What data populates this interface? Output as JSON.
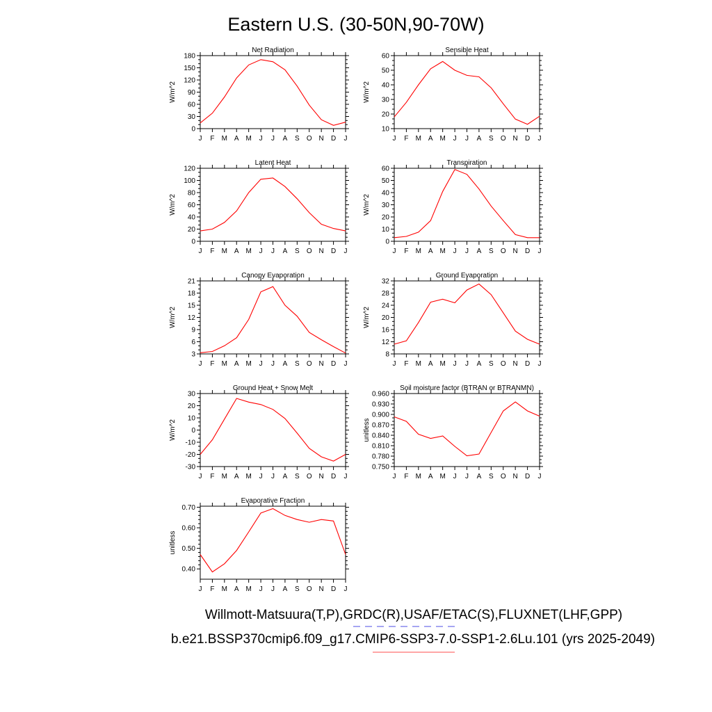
{
  "figure": {
    "title": "Eastern U.S. (30-50N,90-70W)",
    "footer_line1": "Willmott-Matsuura(T,P),GRDC(R),USAF/ETAC(S),FLUXNET(LHF,GPP)",
    "footer_line2": "b.e21.BSSP370cmip6.f09_g17.CMIP6-SSP3-7.0-SSP1-2.6Lu.101 (yrs 2025-2049)",
    "colors": {
      "line": "#ff0000",
      "axis": "#000000",
      "dash": "#8888ee",
      "underline": "#ff8888"
    }
  },
  "chart_data": [
    {
      "type": "line",
      "title": "Net Radiation",
      "ylabel": "W/m^2",
      "categories": [
        "J",
        "F",
        "M",
        "A",
        "M",
        "J",
        "J",
        "A",
        "S",
        "O",
        "N",
        "D",
        "J"
      ],
      "values": [
        14,
        38,
        78,
        125,
        157,
        170,
        165,
        145,
        105,
        58,
        22,
        8,
        16
      ],
      "ylim": [
        0,
        180
      ],
      "yticks": [
        "0",
        "30",
        "60",
        "90",
        "120",
        "150",
        "180"
      ]
    },
    {
      "type": "line",
      "title": "Sensible Heat",
      "ylabel": "W/m^2",
      "categories": [
        "J",
        "F",
        "M",
        "A",
        "M",
        "J",
        "J",
        "A",
        "S",
        "O",
        "N",
        "D",
        "J"
      ],
      "values": [
        18,
        28,
        40,
        51,
        56,
        50,
        46.5,
        45.5,
        38,
        27,
        16.5,
        13,
        18.5
      ],
      "ylim": [
        10,
        60
      ],
      "yticks": [
        "10",
        "20",
        "30",
        "40",
        "50",
        "60"
      ]
    },
    {
      "type": "line",
      "title": "Latent Heat",
      "ylabel": "W/m^2",
      "categories": [
        "J",
        "F",
        "M",
        "A",
        "M",
        "J",
        "J",
        "A",
        "S",
        "O",
        "N",
        "D",
        "J"
      ],
      "values": [
        17,
        20,
        31,
        50,
        80,
        102,
        104,
        90,
        70,
        47,
        28,
        21,
        17
      ],
      "ylim": [
        0,
        120
      ],
      "yticks": [
        "0",
        "20",
        "40",
        "60",
        "80",
        "100",
        "120"
      ]
    },
    {
      "type": "line",
      "title": "Transpiration",
      "ylabel": "W/m^2",
      "categories": [
        "J",
        "F",
        "M",
        "A",
        "M",
        "J",
        "J",
        "A",
        "S",
        "O",
        "N",
        "D",
        "J"
      ],
      "values": [
        3,
        4,
        7.5,
        17,
        41,
        59,
        55,
        43,
        29,
        17,
        5.5,
        3,
        3
      ],
      "ylim": [
        0,
        60
      ],
      "yticks": [
        "0",
        "10",
        "20",
        "30",
        "40",
        "50",
        "60"
      ]
    },
    {
      "type": "line",
      "title": "Canopy Evaporation",
      "ylabel": "W/m^2",
      "categories": [
        "J",
        "F",
        "M",
        "A",
        "M",
        "J",
        "J",
        "A",
        "S",
        "O",
        "N",
        "D",
        "J"
      ],
      "values": [
        3.3,
        3.6,
        5,
        7,
        11.5,
        18.3,
        19.6,
        15,
        12.3,
        8.3,
        6.5,
        4.8,
        3.2
      ],
      "ylim": [
        3,
        21
      ],
      "yticks": [
        "3",
        "6",
        "9",
        "12",
        "15",
        "18",
        "21"
      ]
    },
    {
      "type": "line",
      "title": "Ground Evaporation",
      "ylabel": "W/m^2",
      "categories": [
        "J",
        "F",
        "M",
        "A",
        "M",
        "J",
        "J",
        "A",
        "S",
        "O",
        "N",
        "D",
        "J"
      ],
      "values": [
        11.2,
        12.3,
        18.3,
        25,
        26,
        24.8,
        29,
        31,
        27.5,
        21.5,
        15.5,
        12.8,
        11.2
      ],
      "ylim": [
        8,
        32
      ],
      "yticks": [
        "8",
        "12",
        "16",
        "20",
        "24",
        "28",
        "32"
      ]
    },
    {
      "type": "line",
      "title": "Ground Heat + Snow Melt",
      "ylabel": "W/m^2",
      "categories": [
        "J",
        "F",
        "M",
        "A",
        "M",
        "J",
        "J",
        "A",
        "S",
        "O",
        "N",
        "D",
        "J"
      ],
      "values": [
        -20,
        -8,
        9,
        26,
        23,
        21,
        17,
        9.5,
        -2.5,
        -15,
        -22,
        -25.5,
        -20
      ],
      "ylim": [
        -30,
        30
      ],
      "yticks": [
        "-30",
        "-20",
        "-10",
        "0",
        "10",
        "20",
        "30"
      ]
    },
    {
      "type": "line",
      "title": "Soil moisture factor (BTRAN or BTRANMN)",
      "ylabel": "unitless",
      "categories": [
        "J",
        "F",
        "M",
        "A",
        "M",
        "J",
        "J",
        "A",
        "S",
        "O",
        "N",
        "D",
        "J"
      ],
      "values": [
        0.893,
        0.88,
        0.843,
        0.831,
        0.838,
        0.808,
        0.781,
        0.786,
        0.848,
        0.91,
        0.936,
        0.91,
        0.895
      ],
      "ylim": [
        0.75,
        0.96
      ],
      "yticks": [
        "0.750",
        "0.780",
        "0.810",
        "0.840",
        "0.870",
        "0.900",
        "0.930",
        "0.960"
      ]
    },
    {
      "type": "line",
      "title": "Evaporative Fraction",
      "ylabel": "unitless",
      "categories": [
        "J",
        "F",
        "M",
        "A",
        "M",
        "J",
        "J",
        "A",
        "S",
        "O",
        "N",
        "D",
        "J"
      ],
      "values": [
        0.47,
        0.385,
        0.425,
        0.49,
        0.58,
        0.672,
        0.693,
        0.66,
        0.64,
        0.627,
        0.64,
        0.633,
        0.47
      ],
      "ylim": [
        0.35,
        0.705
      ],
      "yticks": [
        "0.40",
        "0.50",
        "0.60",
        "0.70"
      ],
      "ytickvals": [
        0.4,
        0.5,
        0.6,
        0.7
      ]
    }
  ]
}
